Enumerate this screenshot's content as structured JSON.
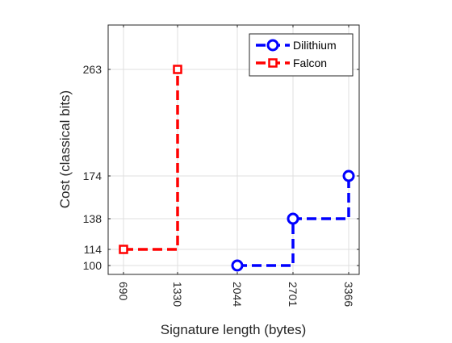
{
  "chart_data": {
    "type": "line",
    "xlabel": "Signature length (bytes)",
    "ylabel": "Cost (classical bits)",
    "x_ticks": [
      690,
      1330,
      2044,
      2701,
      3366
    ],
    "y_ticks": [
      100,
      114,
      138,
      174,
      263
    ],
    "xlim": [
      546,
      3496
    ],
    "ylim": [
      93,
      300
    ],
    "grid": true,
    "legend_position": "top-right",
    "line_style": "dashed-step",
    "series": [
      {
        "name": "Dilithium",
        "color": "#0000ff",
        "marker": "circle",
        "x": [
          2044,
          2701,
          3366
        ],
        "y": [
          100,
          138,
          174
        ]
      },
      {
        "name": "Falcon",
        "color": "#ff0000",
        "marker": "square",
        "x": [
          690,
          1330
        ],
        "y": [
          114,
          263
        ]
      }
    ]
  }
}
